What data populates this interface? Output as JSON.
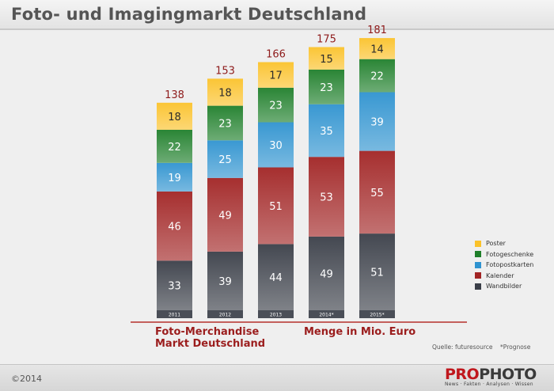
{
  "title": "Foto- und Imagingmarkt Deutschland",
  "subtitle_left": [
    "Foto-Merchandise",
    "Markt Deutschland"
  ],
  "subtitle_right": "Menge in Mio. Euro",
  "source": "Quelle: futuresource",
  "forecast_note": "*Prognose",
  "copyright": "©2014",
  "logo": {
    "pro": "PRO",
    "photo": "PHOTO",
    "tagline": "News · Fakten · Analysen · Wissen"
  },
  "colors": {
    "Poster": "#fbc22a",
    "Fotogeschenke": "#1f7f2a",
    "Fotopostkarten": "#2f93d0",
    "Kalender": "#a12424",
    "Wandbilder": "#3a3e48",
    "total_label": "#8e1b1b",
    "axis": "#b5302c"
  },
  "chart_data": {
    "type": "bar",
    "stacked": true,
    "categories": [
      "2011",
      "2012",
      "2013",
      "2014*",
      "2015*"
    ],
    "series": [
      {
        "name": "Wandbilder",
        "values": [
          33,
          39,
          44,
          49,
          51
        ]
      },
      {
        "name": "Kalender",
        "values": [
          46,
          49,
          51,
          53,
          55
        ]
      },
      {
        "name": "Fotopostkarten",
        "values": [
          19,
          25,
          30,
          35,
          39
        ]
      },
      {
        "name": "Fotogeschenke",
        "values": [
          22,
          23,
          23,
          23,
          22
        ]
      },
      {
        "name": "Poster",
        "values": [
          18,
          18,
          17,
          15,
          14
        ]
      }
    ],
    "totals": [
      138,
      153,
      166,
      175,
      181
    ],
    "legend_order": [
      "Poster",
      "Fotogeschenke",
      "Fotopostkarten",
      "Kalender",
      "Wandbilder"
    ],
    "legend_position": "right",
    "grid": false
  }
}
